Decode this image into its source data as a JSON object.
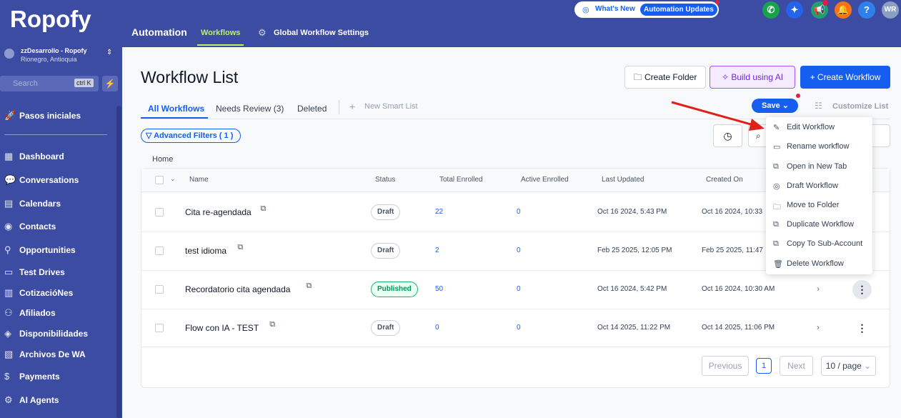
{
  "sidebar": {
    "logo": "Ropofy",
    "account": {
      "name": "zzDesarrollo - Ropofy",
      "location": "Rionegro, Antioquia"
    },
    "search": {
      "placeholder": "Search",
      "shortcut": "ctrl K"
    },
    "nav": [
      "Pasos iniciales",
      "Dashboard",
      "Conversations",
      "Calendars",
      "Contacts",
      "Opportunities",
      "Test Drives",
      "CotizacióNes",
      "Afiliados",
      "Disponibilidades",
      "Archivos De WA",
      "Payments",
      "AI Agents"
    ]
  },
  "topbar": {
    "title": "Automation",
    "tabs": [
      "Workflows",
      "Global Workflow Settings"
    ],
    "whats_new": "What's New",
    "updates": "Automation Updates",
    "help": "?",
    "avatar": "WR"
  },
  "header": {
    "title": "Workflow List",
    "buttons": [
      "Create Folder",
      "Build using AI",
      "Create Workflow"
    ]
  },
  "tabs": [
    "All Workflows",
    "Needs Review (3)",
    "Deleted"
  ],
  "new_smart_list": "New Smart List",
  "save": "Save",
  "customize": "Customize List",
  "filters": "Advanced Filters ( 1 )",
  "breadcrumb": "Home",
  "table": {
    "columns": [
      "Name",
      "Status",
      "Total Enrolled",
      "Active Enrolled",
      "Last Updated",
      "Created On"
    ],
    "rows": [
      [
        "Cita re-agendada",
        "Draft",
        22,
        0,
        "Oct 16 2024, 5:43 PM",
        "Oct 16 2024, 10:33"
      ],
      [
        "test idioma",
        "Draft",
        2,
        0,
        "Feb 25 2025, 12:05 PM",
        "Feb 25 2025, 11:47"
      ],
      [
        "Recordatorio cita agendada",
        "Published",
        50,
        0,
        "Oct 16 2024, 5:42 PM",
        "Oct 16 2024, 10:30 AM"
      ],
      [
        "Flow con IA - TEST",
        "Draft",
        0,
        0,
        "Oct 14 2025, 11:22 PM",
        "Oct 14 2025, 11:06 PM"
      ]
    ]
  },
  "pagination": {
    "previous": "Previous",
    "page": "1",
    "next": "Next",
    "size": "10 / page"
  },
  "menu": [
    "Edit Workflow",
    "Rename workflow",
    "Open in New Tab",
    "Draft Workflow",
    "Move to Folder",
    "Duplicate Workflow",
    "Copy To Sub-Account",
    "Delete Workflow"
  ]
}
